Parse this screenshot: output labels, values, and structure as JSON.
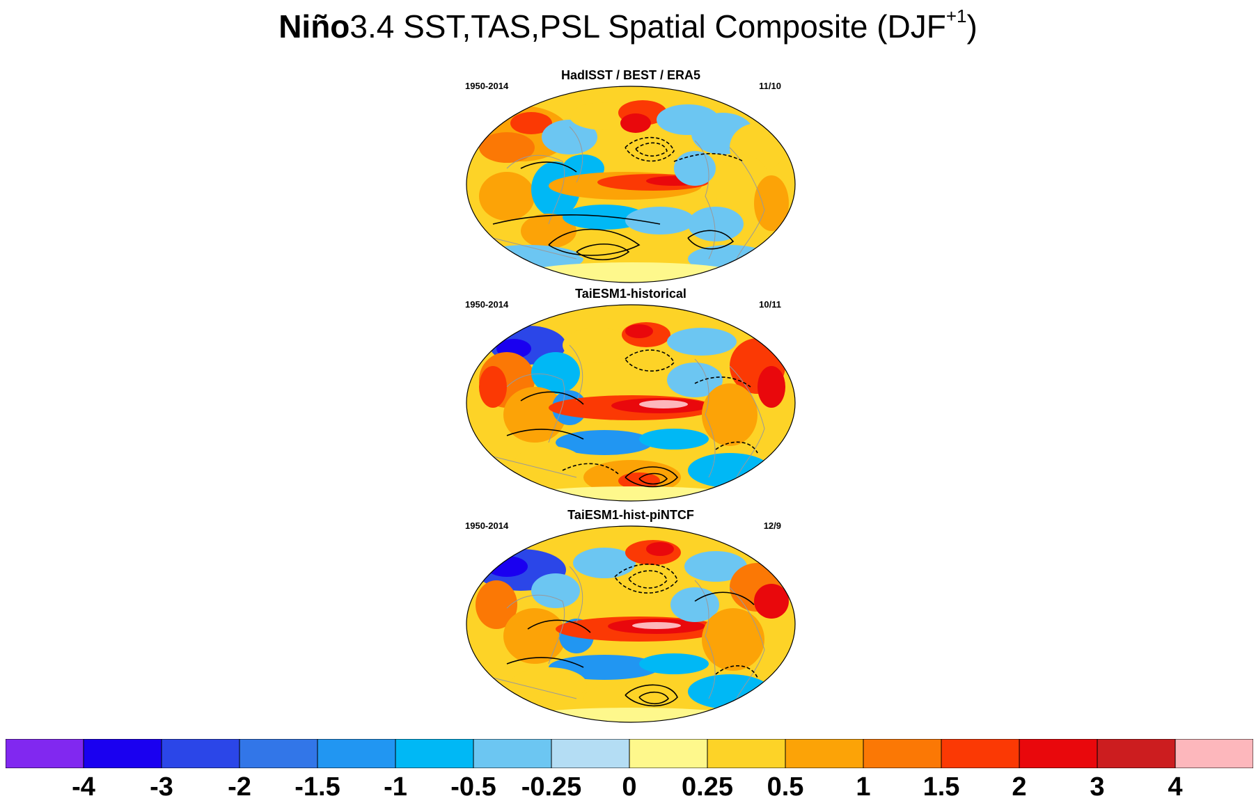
{
  "title": {
    "bold_part": "Niño",
    "rest": "3.4 SST,TAS,PSL Spatial Composite (DJF",
    "superscript": "+1",
    "close": ")"
  },
  "panels": [
    {
      "title": "HadISST / BEST / ERA5",
      "period": "1950-2014",
      "count": "11/10"
    },
    {
      "title": "TaiESM1-historical",
      "period": "1950-2014",
      "count": "10/11"
    },
    {
      "title": "TaiESM1-hist-piNTCF",
      "period": "1950-2014",
      "count": "12/9"
    }
  ],
  "colorbar": {
    "colors": [
      "#8128f0",
      "#1a00f0",
      "#2b46e8",
      "#3276e8",
      "#2196f2",
      "#00b8f5",
      "#6cc6f2",
      "#b4ddf4",
      "#fef88c",
      "#fdd327",
      "#fca307",
      "#fb7805",
      "#fb3904",
      "#e9080c",
      "#cc1d1f",
      "#fdb7bc"
    ],
    "labels": [
      "-4",
      "-3",
      "-2",
      "-1.5",
      "-1",
      "-0.5",
      "-0.25",
      "0",
      "0.25",
      "0.5",
      "1",
      "1.5",
      "2",
      "3",
      "4"
    ]
  }
}
